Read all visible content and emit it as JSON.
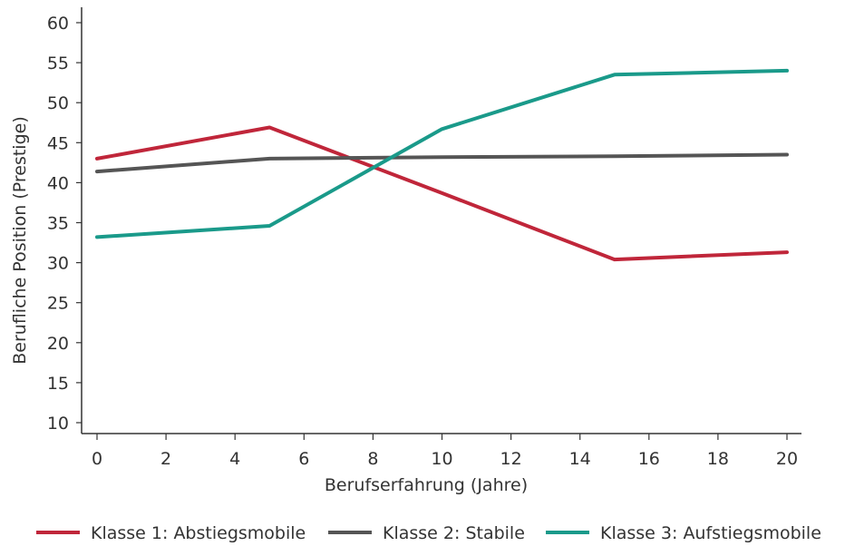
{
  "chart_data": {
    "type": "line",
    "title": "",
    "xlabel": "Berufserfahrung (Jahre)",
    "ylabel": "Berufliche Position (Prestige)",
    "xlim": [
      0,
      20
    ],
    "ylim": [
      10,
      60
    ],
    "x_ticks": [
      "0",
      "2",
      "4",
      "6",
      "8",
      "10",
      "12",
      "14",
      "16",
      "18",
      "20"
    ],
    "y_ticks": [
      "10",
      "15",
      "20",
      "25",
      "30",
      "35",
      "40",
      "45",
      "50",
      "55",
      "60"
    ],
    "grid": false,
    "legend_position": "bottom",
    "series": [
      {
        "name": "Klasse 1: Abstiegsmobile",
        "color": "#c0263a",
        "x": [
          0,
          5,
          10,
          15,
          20
        ],
        "y": [
          43.0,
          46.9,
          38.7,
          30.4,
          31.3
        ]
      },
      {
        "name": "Klasse 2: Stabile",
        "color": "#555555",
        "x": [
          0,
          5,
          10,
          15,
          20
        ],
        "y": [
          41.4,
          43.0,
          43.2,
          43.3,
          43.5
        ]
      },
      {
        "name": "Klasse 3: Aufstiegsmobile",
        "color": "#1a9a8a",
        "x": [
          0,
          5,
          10,
          15,
          20
        ],
        "y": [
          33.2,
          34.6,
          46.7,
          53.5,
          54.0
        ]
      }
    ]
  }
}
